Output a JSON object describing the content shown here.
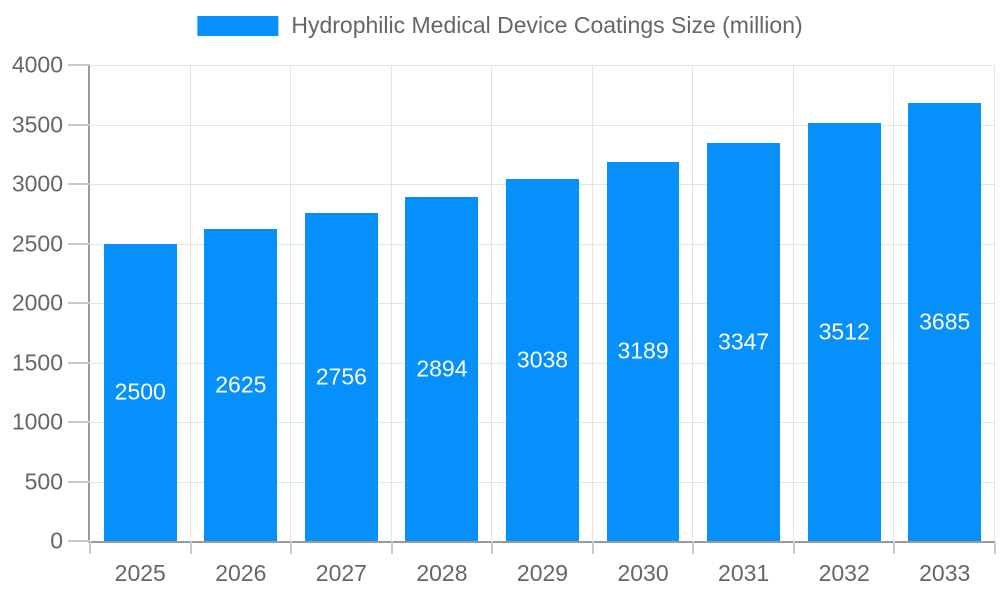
{
  "chart_data": {
    "type": "bar",
    "title": "Hydrophilic Medical Device Coatings Size (million)",
    "categories": [
      "2025",
      "2026",
      "2027",
      "2028",
      "2029",
      "2030",
      "2031",
      "2032",
      "2033"
    ],
    "values": [
      2500,
      2625,
      2756,
      2894,
      3038,
      3189,
      3347,
      3512,
      3685
    ],
    "xlabel": "",
    "ylabel": "",
    "ylim": [
      0,
      4000
    ],
    "ytick_step": 500,
    "grid": true,
    "legend_position": "top-center",
    "value_labels": "inside-center",
    "colors": {
      "bar": "#0590fb",
      "bar_label_text": "#ffffff",
      "axis_text": "#666666",
      "axis_line": "#9a9a9a",
      "tick_line": "#c9c9c9",
      "gridline": "#e4e4e4",
      "background": "#ffffff"
    }
  }
}
